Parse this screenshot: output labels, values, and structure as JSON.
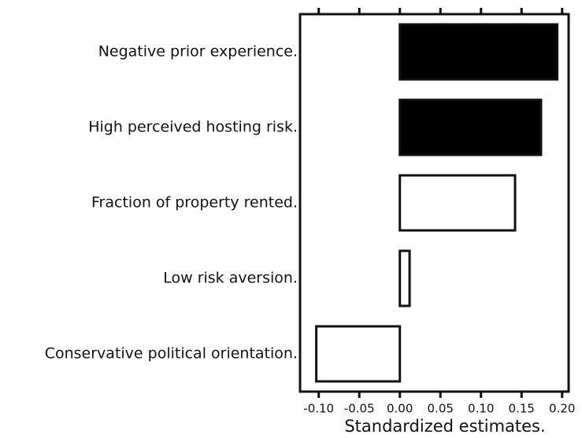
{
  "chart_data": {
    "type": "barh",
    "categories": [
      "Negative prior experience.",
      "High perceived hosting risk.",
      "Fraction of property rented.",
      "Low risk aversion.",
      "Conservative political orientation."
    ],
    "values": [
      0.194,
      0.174,
      0.142,
      0.012,
      -0.103
    ],
    "colors": [
      "#000000",
      "#000000",
      "#ffffff",
      "#ffffff",
      "#ffffff"
    ],
    "xlabel": "Standardized estimates.",
    "xlim": [
      -0.123,
      0.208
    ],
    "xticks": [
      {
        "value": -0.1,
        "label": "-0.10"
      },
      -0.05,
      {
        "value": 0,
        "label": "0.00"
      },
      0.05,
      {
        "value": 0.1,
        "label": "0.10"
      },
      0.15,
      {
        "value": 0.2,
        "label": "0.20"
      }
    ]
  }
}
